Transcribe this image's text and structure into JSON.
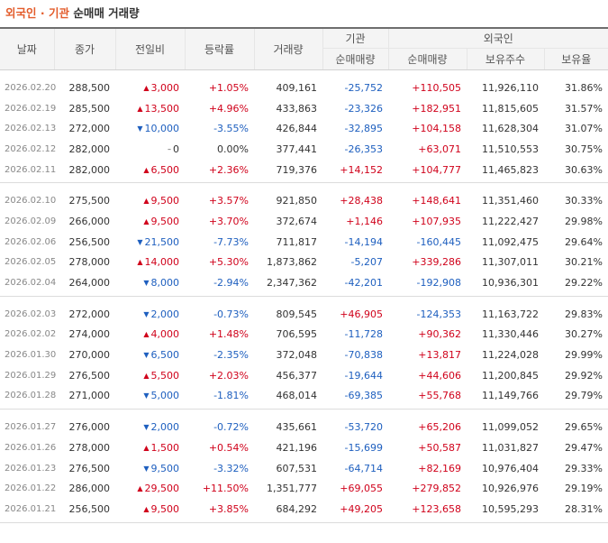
{
  "title": {
    "accent": "외국인 · 기관",
    "rest": "순매매 거래량"
  },
  "headers": {
    "date": "날짜",
    "close": "종가",
    "change": "전일비",
    "rate": "등락률",
    "volume": "거래량",
    "institution": "기관",
    "foreign": "외국인",
    "inst_net": "순매매량",
    "for_net": "순매매량",
    "holdings": "보유주수",
    "hold_ratio": "보유율"
  },
  "groups": [
    [
      {
        "date": "2026.02.20",
        "close": "288,500",
        "dir": "up",
        "change": "3,000",
        "rate": "+1.05%",
        "volume": "409,161",
        "inst": "-25,752",
        "foreign": "+110,505",
        "holdings": "11,926,110",
        "ratio": "31.86%"
      },
      {
        "date": "2026.02.19",
        "close": "285,500",
        "dir": "up",
        "change": "13,500",
        "rate": "+4.96%",
        "volume": "433,863",
        "inst": "-23,326",
        "foreign": "+182,951",
        "holdings": "11,815,605",
        "ratio": "31.57%"
      },
      {
        "date": "2026.02.13",
        "close": "272,000",
        "dir": "down",
        "change": "10,000",
        "rate": "-3.55%",
        "volume": "426,844",
        "inst": "-32,895",
        "foreign": "+104,158",
        "holdings": "11,628,304",
        "ratio": "31.07%"
      },
      {
        "date": "2026.02.12",
        "close": "282,000",
        "dir": "flat",
        "change": "0",
        "rate": "0.00%",
        "volume": "377,441",
        "inst": "-26,353",
        "foreign": "+63,071",
        "holdings": "11,510,553",
        "ratio": "30.75%"
      },
      {
        "date": "2026.02.11",
        "close": "282,000",
        "dir": "up",
        "change": "6,500",
        "rate": "+2.36%",
        "volume": "719,376",
        "inst": "+14,152",
        "foreign": "+104,777",
        "holdings": "11,465,823",
        "ratio": "30.63%"
      }
    ],
    [
      {
        "date": "2026.02.10",
        "close": "275,500",
        "dir": "up",
        "change": "9,500",
        "rate": "+3.57%",
        "volume": "921,850",
        "inst": "+28,438",
        "foreign": "+148,641",
        "holdings": "11,351,460",
        "ratio": "30.33%"
      },
      {
        "date": "2026.02.09",
        "close": "266,000",
        "dir": "up",
        "change": "9,500",
        "rate": "+3.70%",
        "volume": "372,674",
        "inst": "+1,146",
        "foreign": "+107,935",
        "holdings": "11,222,427",
        "ratio": "29.98%"
      },
      {
        "date": "2026.02.06",
        "close": "256,500",
        "dir": "down",
        "change": "21,500",
        "rate": "-7.73%",
        "volume": "711,817",
        "inst": "-14,194",
        "foreign": "-160,445",
        "holdings": "11,092,475",
        "ratio": "29.64%"
      },
      {
        "date": "2026.02.05",
        "close": "278,000",
        "dir": "up",
        "change": "14,000",
        "rate": "+5.30%",
        "volume": "1,873,862",
        "inst": "-5,207",
        "foreign": "+339,286",
        "holdings": "11,307,011",
        "ratio": "30.21%"
      },
      {
        "date": "2026.02.04",
        "close": "264,000",
        "dir": "down",
        "change": "8,000",
        "rate": "-2.94%",
        "volume": "2,347,362",
        "inst": "-42,201",
        "foreign": "-192,908",
        "holdings": "10,936,301",
        "ratio": "29.22%"
      }
    ],
    [
      {
        "date": "2026.02.03",
        "close": "272,000",
        "dir": "down",
        "change": "2,000",
        "rate": "-0.73%",
        "volume": "809,545",
        "inst": "+46,905",
        "foreign": "-124,353",
        "holdings": "11,163,722",
        "ratio": "29.83%"
      },
      {
        "date": "2026.02.02",
        "close": "274,000",
        "dir": "up",
        "change": "4,000",
        "rate": "+1.48%",
        "volume": "706,595",
        "inst": "-11,728",
        "foreign": "+90,362",
        "holdings": "11,330,446",
        "ratio": "30.27%"
      },
      {
        "date": "2026.01.30",
        "close": "270,000",
        "dir": "down",
        "change": "6,500",
        "rate": "-2.35%",
        "volume": "372,048",
        "inst": "-70,838",
        "foreign": "+13,817",
        "holdings": "11,224,028",
        "ratio": "29.99%"
      },
      {
        "date": "2026.01.29",
        "close": "276,500",
        "dir": "up",
        "change": "5,500",
        "rate": "+2.03%",
        "volume": "456,377",
        "inst": "-19,644",
        "foreign": "+44,606",
        "holdings": "11,200,845",
        "ratio": "29.92%"
      },
      {
        "date": "2026.01.28",
        "close": "271,000",
        "dir": "down",
        "change": "5,000",
        "rate": "-1.81%",
        "volume": "468,014",
        "inst": "-69,385",
        "foreign": "+55,768",
        "holdings": "11,149,766",
        "ratio": "29.79%"
      }
    ],
    [
      {
        "date": "2026.01.27",
        "close": "276,000",
        "dir": "down",
        "change": "2,000",
        "rate": "-0.72%",
        "volume": "435,661",
        "inst": "-53,720",
        "foreign": "+65,206",
        "holdings": "11,099,052",
        "ratio": "29.65%"
      },
      {
        "date": "2026.01.26",
        "close": "278,000",
        "dir": "up",
        "change": "1,500",
        "rate": "+0.54%",
        "volume": "421,196",
        "inst": "-15,699",
        "foreign": "+50,587",
        "holdings": "11,031,827",
        "ratio": "29.47%"
      },
      {
        "date": "2026.01.23",
        "close": "276,500",
        "dir": "down",
        "change": "9,500",
        "rate": "-3.32%",
        "volume": "607,531",
        "inst": "-64,714",
        "foreign": "+82,169",
        "holdings": "10,976,404",
        "ratio": "29.33%"
      },
      {
        "date": "2026.01.22",
        "close": "286,000",
        "dir": "up",
        "change": "29,500",
        "rate": "+11.50%",
        "volume": "1,351,777",
        "inst": "+69,055",
        "foreign": "+279,852",
        "holdings": "10,926,976",
        "ratio": "29.19%"
      },
      {
        "date": "2026.01.21",
        "close": "256,500",
        "dir": "up",
        "change": "9,500",
        "rate": "+3.85%",
        "volume": "684,292",
        "inst": "+49,205",
        "foreign": "+123,658",
        "holdings": "10,595,293",
        "ratio": "28.31%"
      }
    ]
  ],
  "colors": {
    "up": "#d0021b",
    "down": "#1e5fbf",
    "accent": "#e35c2b"
  },
  "icons": {
    "up": "triangle-up-icon",
    "down": "triangle-down-icon",
    "flat": "dash-icon"
  }
}
